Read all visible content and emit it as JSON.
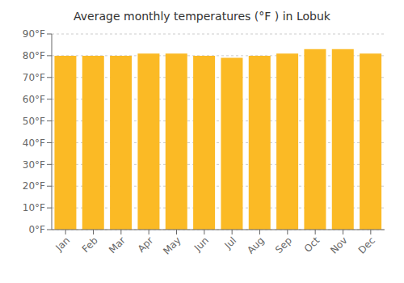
{
  "chart_data": {
    "type": "bar",
    "title": "Average monthly temperatures (°F ) in Lobuk",
    "categories": [
      "Jan",
      "Feb",
      "Mar",
      "Apr",
      "May",
      "Jun",
      "Jul",
      "Aug",
      "Sep",
      "Oct",
      "Nov",
      "Dec"
    ],
    "values": [
      80,
      80,
      80,
      81,
      81,
      80,
      79,
      80,
      81,
      83,
      83,
      81
    ],
    "color": "#FBBA25",
    "ylim": [
      0,
      90
    ],
    "yticks": [
      {
        "value": 0,
        "label": "0°F"
      },
      {
        "value": 10,
        "label": "10°F"
      },
      {
        "value": 20,
        "label": "20°F"
      },
      {
        "value": 30,
        "label": "30°F"
      },
      {
        "value": 40,
        "label": "40°F"
      },
      {
        "value": 50,
        "label": "50°F"
      },
      {
        "value": 60,
        "label": "60°F"
      },
      {
        "value": 70,
        "label": "70°F"
      },
      {
        "value": 80,
        "label": "80°F"
      },
      {
        "value": 90,
        "label": "90°F"
      }
    ],
    "grid": true
  }
}
